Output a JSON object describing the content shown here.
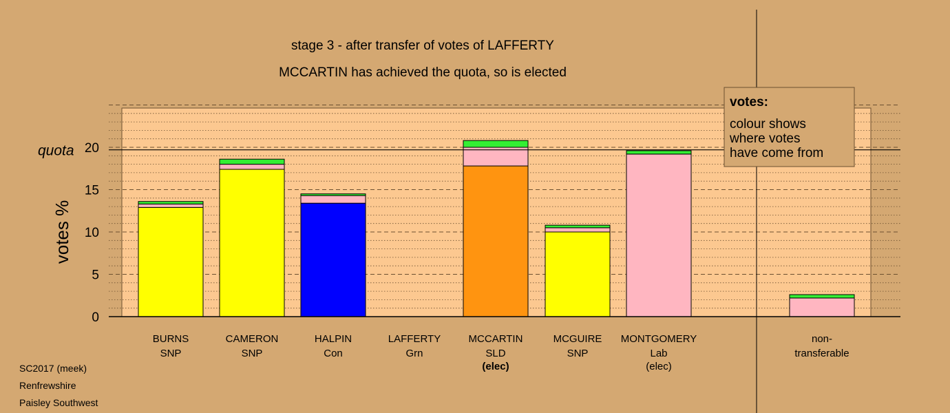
{
  "chart_data": {
    "type": "bar",
    "stacked": true,
    "title": "stage 3 - after transfer of votes of LAFFERTY",
    "subtitle": "MCCARTIN has achieved the quota, so is elected",
    "ylabel": "votes %",
    "ylim": [
      0,
      25
    ],
    "yticks": [
      "0",
      "5",
      "10",
      "15",
      "20"
    ],
    "quota_label": "quota",
    "quota_value": 19.7,
    "grid": true,
    "candidates": [
      {
        "name": "BURNS",
        "party": "SNP",
        "status": "",
        "segments": [
          {
            "value": 12.9,
            "color": "#ffff00"
          },
          {
            "value": 0.4,
            "color": "#ffb6c1"
          },
          {
            "value": 0.3,
            "color": "#33ee33"
          }
        ]
      },
      {
        "name": "CAMERON",
        "party": "SNP",
        "status": "",
        "segments": [
          {
            "value": 17.4,
            "color": "#ffff00"
          },
          {
            "value": 0.6,
            "color": "#ffb6c1"
          },
          {
            "value": 0.6,
            "color": "#33ee33"
          }
        ]
      },
      {
        "name": "HALPIN",
        "party": "Con",
        "status": "",
        "segments": [
          {
            "value": 13.4,
            "color": "#0000ff"
          },
          {
            "value": 0.9,
            "color": "#ffb6c1"
          },
          {
            "value": 0.2,
            "color": "#33ee33"
          }
        ]
      },
      {
        "name": "LAFFERTY",
        "party": "Grn",
        "status": "",
        "segments": []
      },
      {
        "name": "MCCARTIN",
        "party": "SLD",
        "status": "(elec)",
        "segments": [
          {
            "value": 17.8,
            "color": "#ff9410"
          },
          {
            "value": 2.2,
            "color": "#ffb6c1"
          },
          {
            "value": 0.8,
            "color": "#33ee33"
          }
        ]
      },
      {
        "name": "MCGUIRE",
        "party": "SNP",
        "status": "",
        "segments": [
          {
            "value": 10.0,
            "color": "#ffff00"
          },
          {
            "value": 0.5,
            "color": "#ffb6c1"
          },
          {
            "value": 0.3,
            "color": "#33ee33"
          }
        ]
      },
      {
        "name": "MONTGOMERY",
        "party": "Lab",
        "status": "(elec)",
        "segments": [
          {
            "value": 19.2,
            "color": "#ffb6c1"
          },
          {
            "value": 0.4,
            "color": "#33ee33"
          }
        ]
      }
    ],
    "nontransferable": {
      "label_line1": "non-",
      "label_line2": "transferable",
      "segments": [
        {
          "value": 2.2,
          "color": "#ffb6c1"
        },
        {
          "value": 0.4,
          "color": "#33ee33"
        }
      ]
    },
    "legend": {
      "title": "votes:",
      "lines": [
        "colour shows",
        "where votes",
        "have come from"
      ],
      "placement": "top-right"
    }
  },
  "footer": {
    "line1": "SC2017 (meek)",
    "line2": "Renfrewshire",
    "line3": "Paisley Southwest"
  },
  "colors": {
    "background": "#d4a872",
    "plot_area": "#fcc890"
  }
}
